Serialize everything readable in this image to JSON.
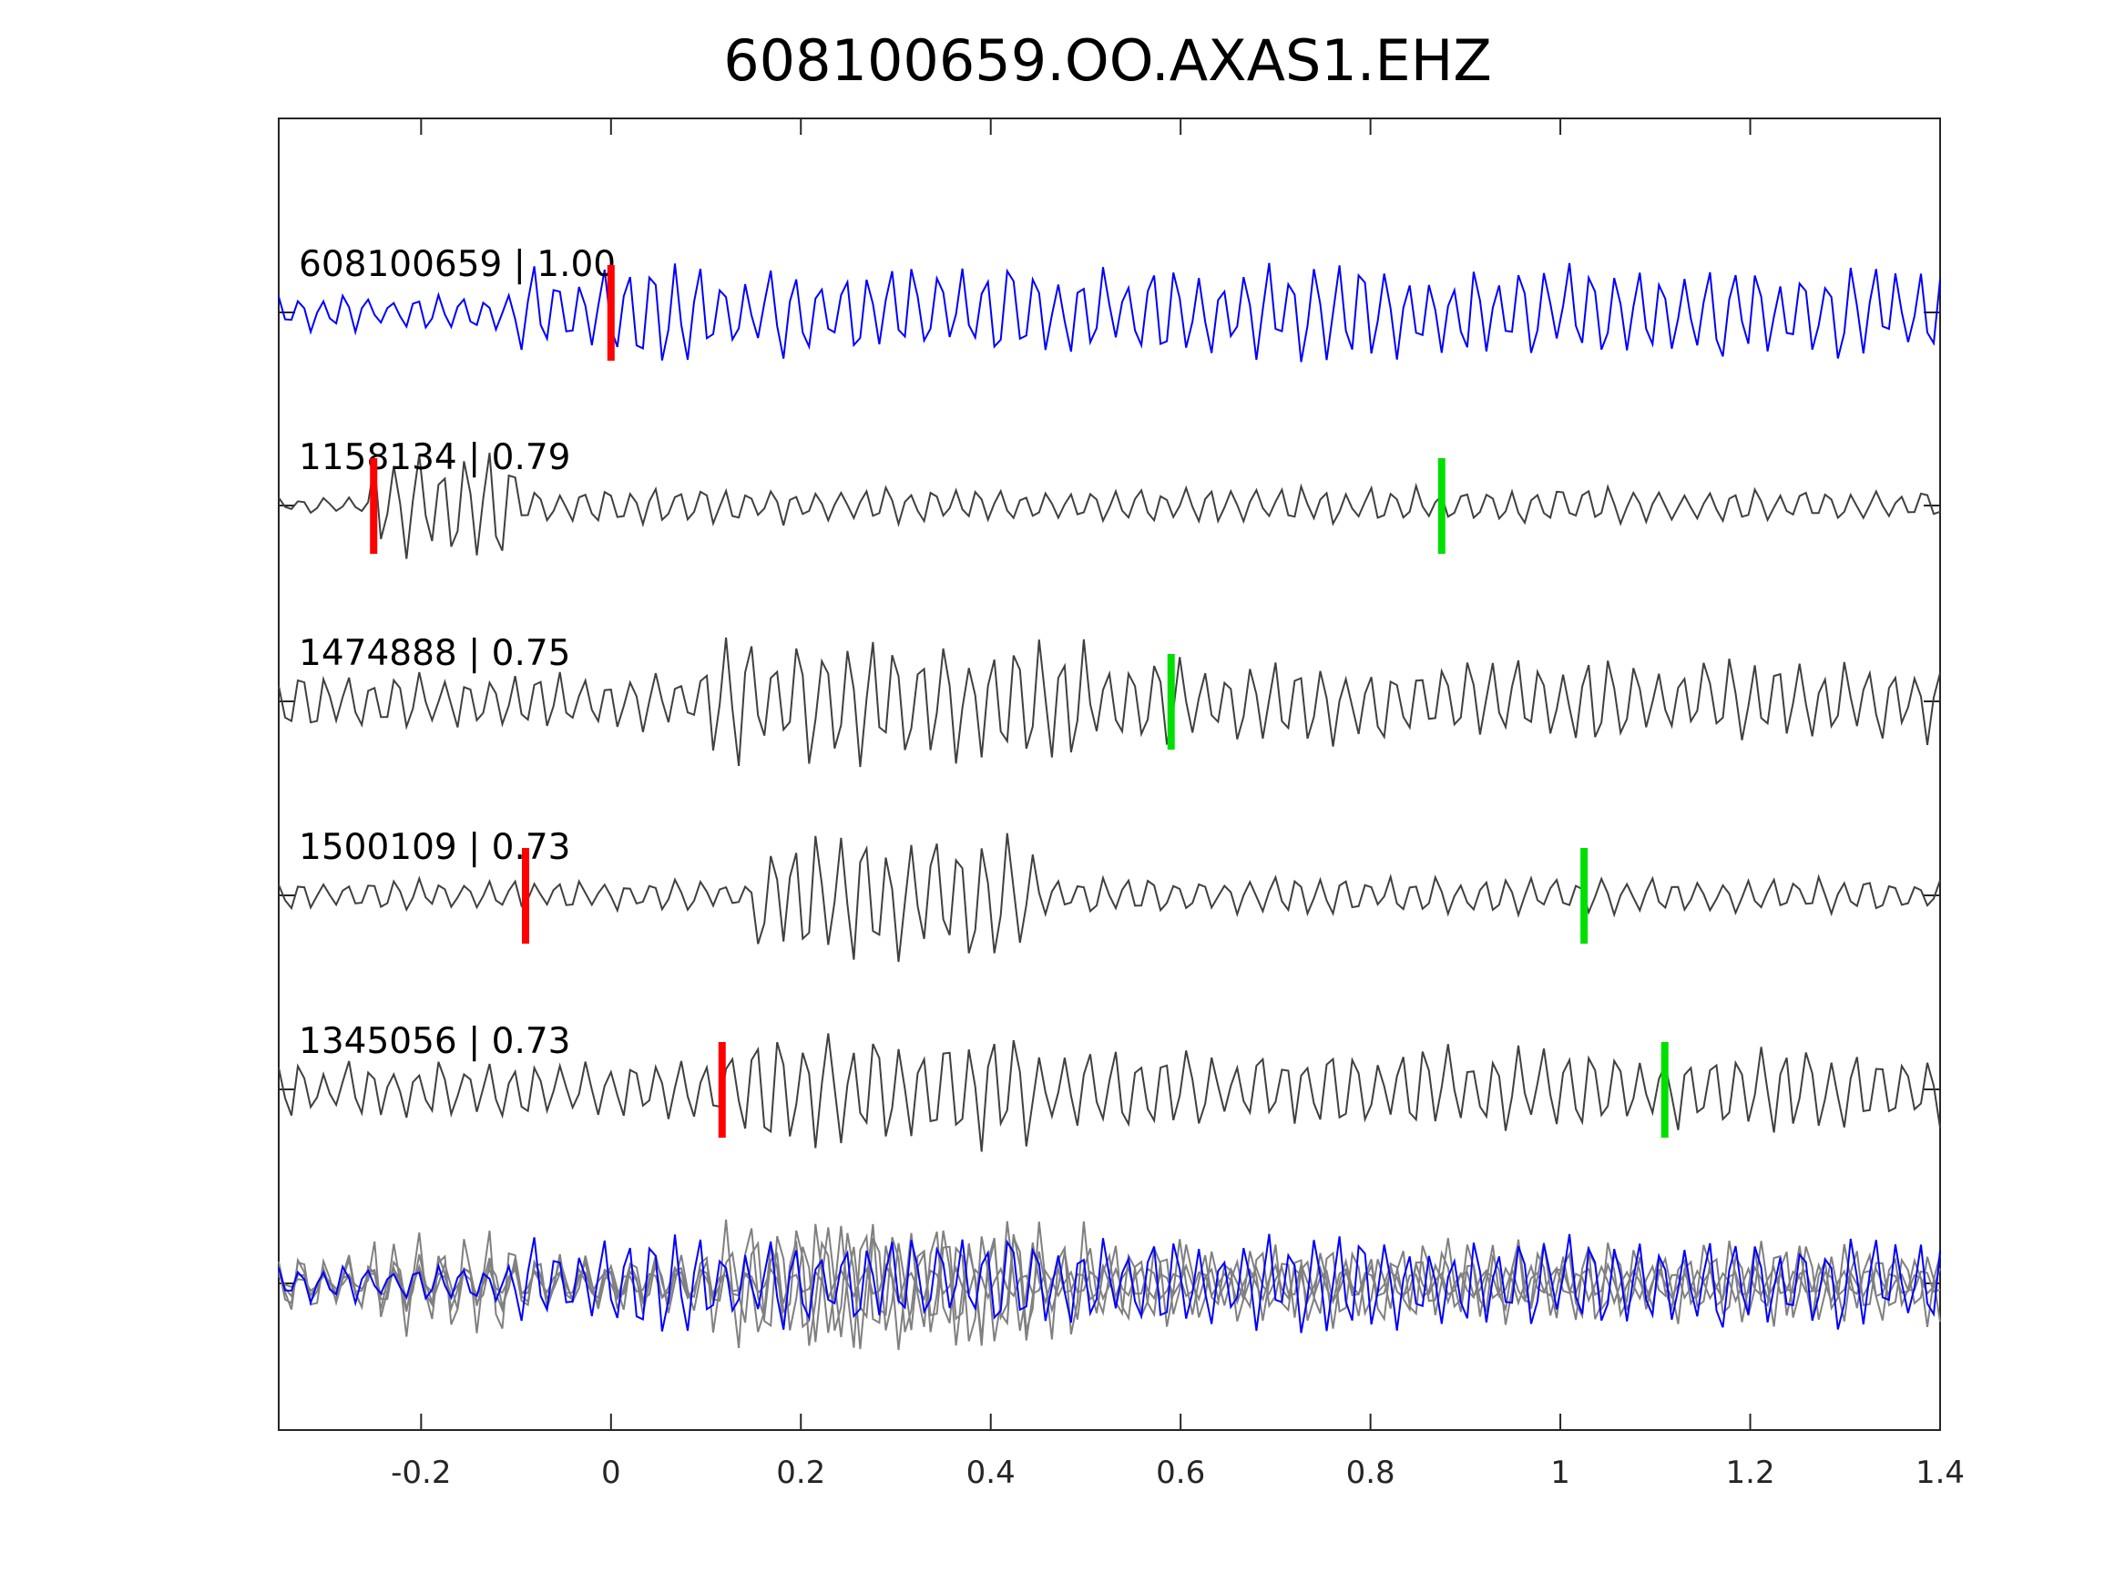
{
  "chart_data": {
    "type": "line",
    "title": "608100659.OO.AXAS1.EHZ",
    "xlabel": "",
    "ylabel": "",
    "xlim": [
      -0.35,
      1.4
    ],
    "xticks": [
      -0.2,
      0,
      0.2,
      0.4,
      0.6,
      0.8,
      1,
      1.2,
      1.4
    ],
    "xtick_labels": [
      "-0.2",
      "0",
      "0.2",
      "0.4",
      "0.6",
      "0.8",
      "1",
      "1.2",
      "1.4"
    ],
    "grid": false,
    "colors": {
      "template": "#0000ff",
      "match": "#404040",
      "stack": "#808080",
      "p_pick": "#ff0000",
      "s_pick": "#00e000"
    },
    "traces": [
      {
        "label": "608100659 | 1.00",
        "id": "608100659",
        "cc": 1.0,
        "p_pick": 0.0,
        "s_pick": null,
        "color": "#0000ff"
      },
      {
        "label": "1158134 | 0.79",
        "id": "1158134",
        "cc": 0.79,
        "p_pick": -0.25,
        "s_pick": 0.875,
        "color": "#404040"
      },
      {
        "label": "1474888 | 0.75",
        "id": "1474888",
        "cc": 0.75,
        "p_pick": null,
        "s_pick": 0.59,
        "color": "#404040"
      },
      {
        "label": "1500109 | 0.73",
        "id": "1500109",
        "cc": 0.73,
        "p_pick": -0.09,
        "s_pick": 1.025,
        "color": "#404040"
      },
      {
        "label": "1345056 | 0.73",
        "id": "1345056",
        "cc": 0.73,
        "p_pick": 0.117,
        "s_pick": 1.11,
        "color": "#404040"
      }
    ]
  }
}
